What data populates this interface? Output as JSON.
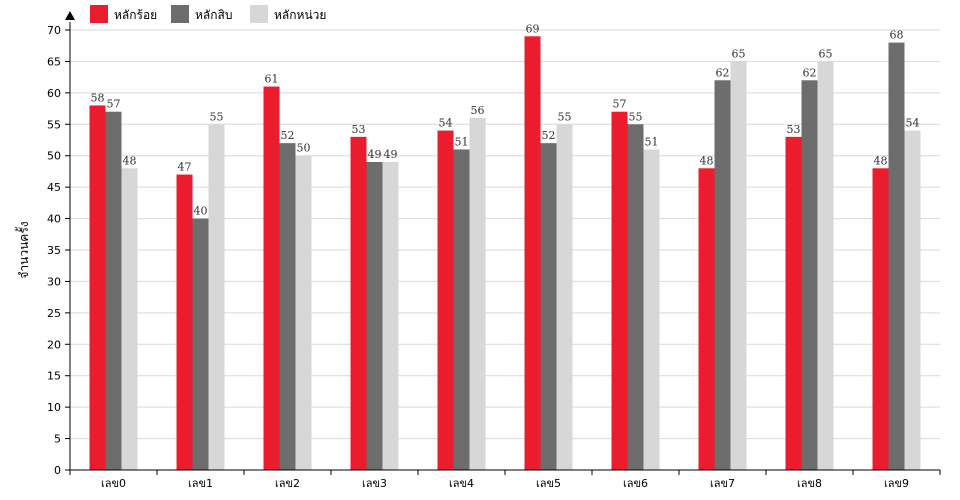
{
  "chart_data": {
    "type": "bar",
    "categories": [
      "เลข0",
      "เลข1",
      "เลข2",
      "เลข3",
      "เลข4",
      "เลข5",
      "เลข6",
      "เลข7",
      "เลข8",
      "เลข9"
    ],
    "series": [
      {
        "name": "หลักร้อย",
        "color": "#ec1c2f",
        "values": [
          58,
          47,
          61,
          53,
          54,
          69,
          57,
          48,
          53,
          48
        ]
      },
      {
        "name": "หลักสิบ",
        "color": "#6d6d6d",
        "values": [
          57,
          40,
          52,
          49,
          51,
          52,
          55,
          62,
          62,
          68
        ]
      },
      {
        "name": "หลักหน่วย",
        "color": "#d7d7d7",
        "values": [
          48,
          55,
          50,
          49,
          56,
          55,
          51,
          65,
          65,
          54
        ]
      }
    ],
    "title": "",
    "xlabel": "",
    "ylabel": "จำนวนครั้ง",
    "ylim": [
      0,
      70
    ],
    "yticks": [
      "0",
      "5",
      "10",
      "15",
      "20",
      "25",
      "30",
      "35",
      "40",
      "45",
      "50",
      "55",
      "60",
      "65",
      "70"
    ],
    "grid": true,
    "legend": "top-left"
  }
}
